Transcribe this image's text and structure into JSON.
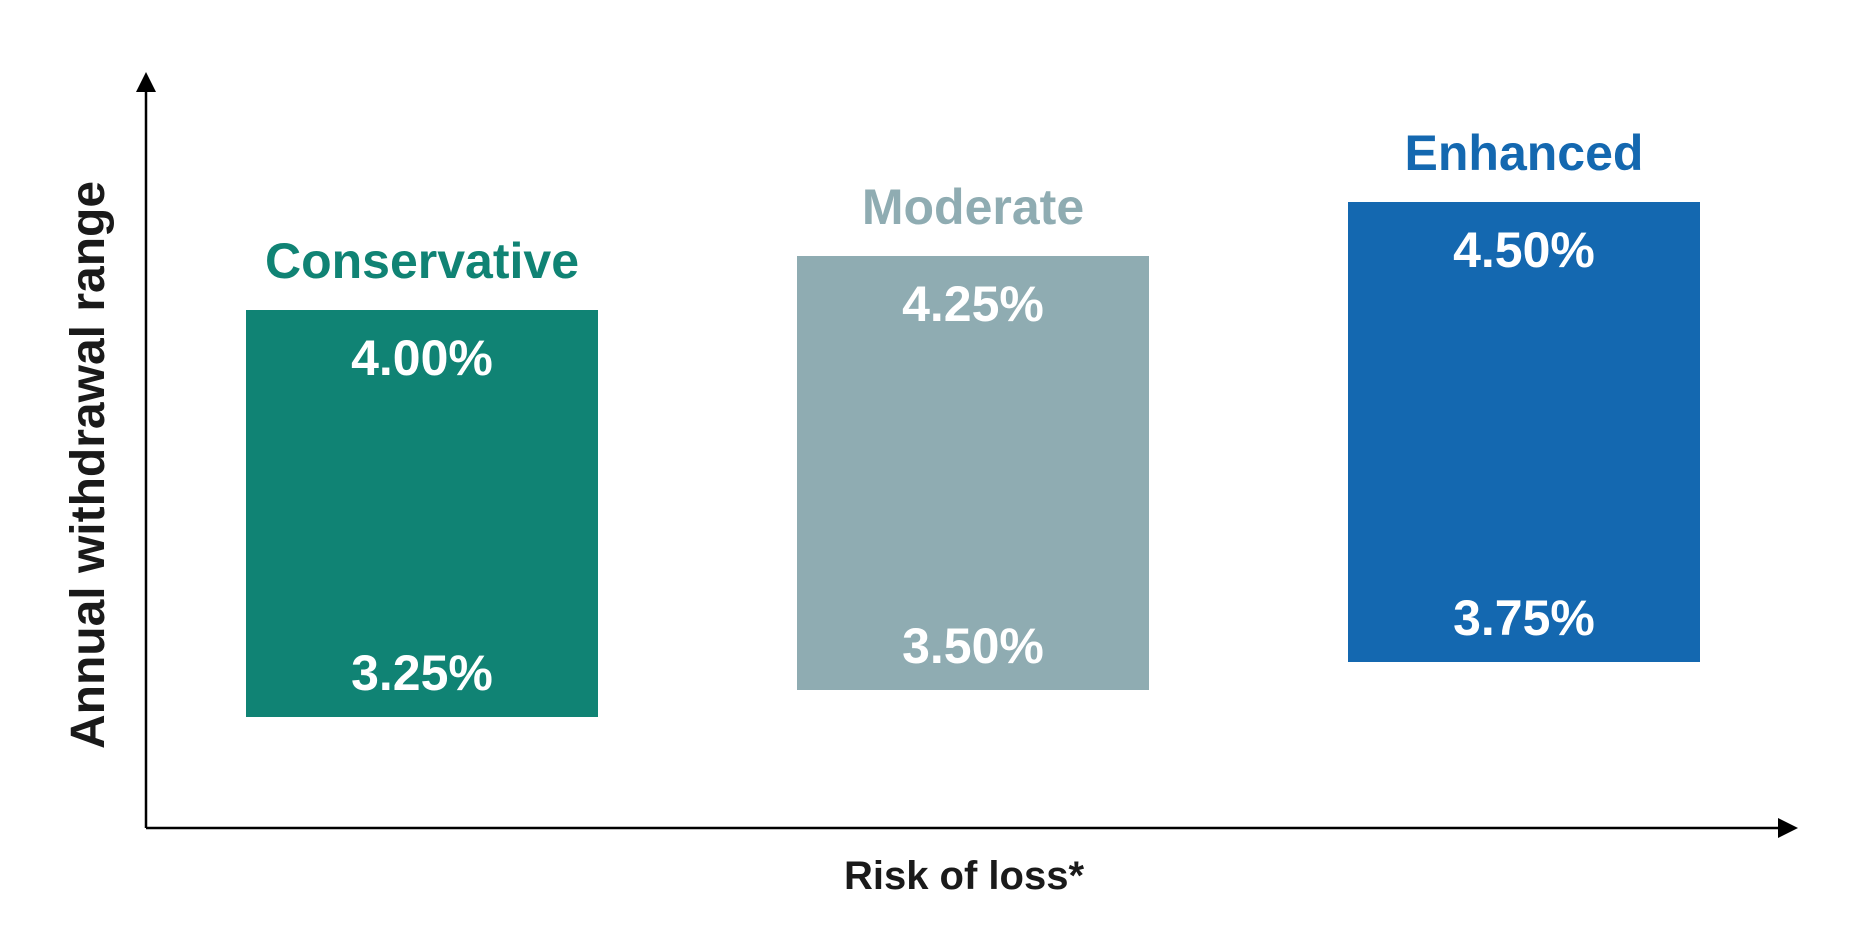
{
  "chart_data": {
    "type": "bar",
    "subtype": "floating-range",
    "categories": [
      "Conservative",
      "Moderate",
      "Enhanced"
    ],
    "ranges": [
      {
        "category": "Conservative",
        "low": 3.25,
        "high": 4.0,
        "low_label": "3.25%",
        "high_label": "4.00%",
        "color": "#108374"
      },
      {
        "category": "Moderate",
        "low": 3.5,
        "high": 4.25,
        "low_label": "3.50%",
        "high_label": "4.25%",
        "color": "#8FACB2"
      },
      {
        "category": "Enhanced",
        "low": 3.75,
        "high": 4.5,
        "low_label": "3.75%",
        "high_label": "4.50%",
        "color": "#1468B0"
      }
    ],
    "xlabel": "Risk of loss*",
    "ylabel": "Annual withdrawal range",
    "grid": false,
    "legend": "none",
    "axis_color": "#000000",
    "label_text_color": "#ffffff",
    "axis_title_color": "#1a1a1a"
  }
}
